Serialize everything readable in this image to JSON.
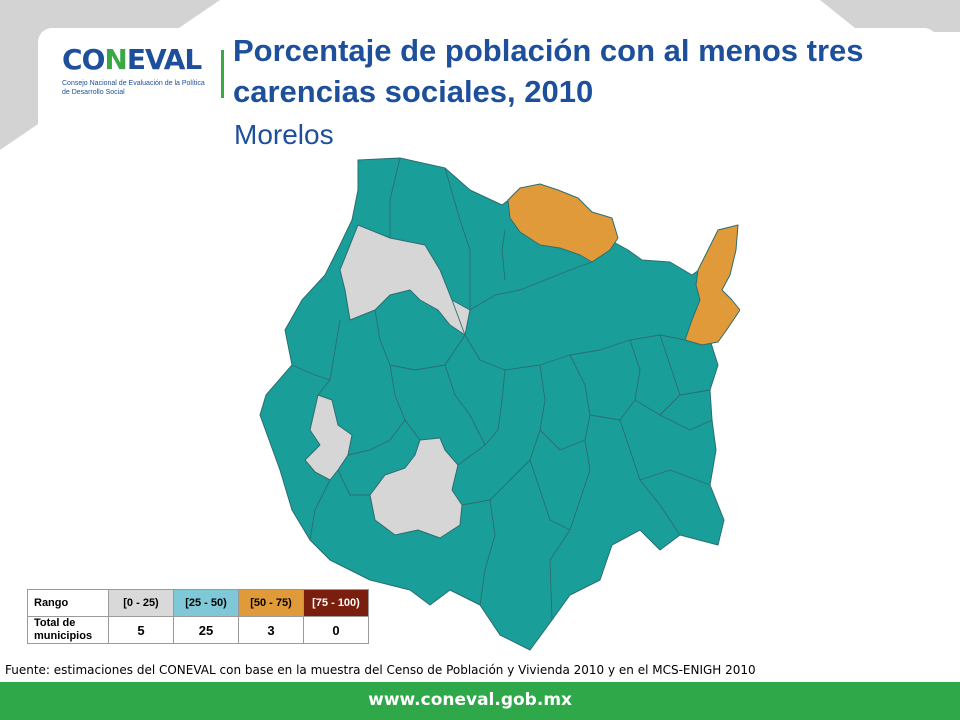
{
  "header": {
    "logo_text": "CONEVAL",
    "logo_subtitle": "Consejo Nacional de Evaluación de la Política de Desarrollo Social",
    "title": "Porcentaje de población con al menos tres carencias sociales, 2010",
    "subtitle": "Morelos"
  },
  "legend": {
    "row1_label": "Rango",
    "row2_label": "Total de municipios",
    "ranges": [
      "[0 - 25)",
      "[25 - 50)",
      "[50 - 75)",
      "[75 - 100)"
    ],
    "counts": [
      "5",
      "25",
      "3",
      "0"
    ],
    "colors": [
      "#d9d9d9",
      "#7ec8d8",
      "#e09a3a",
      "#7a1f0e"
    ]
  },
  "map_colors": {
    "teal": "#1a9e9a",
    "gray": "#d6d6d6",
    "orange": "#e09a3a",
    "border": "#2a6f73"
  },
  "source": "Fuente: estimaciones del CONEVAL con base en la muestra del Censo de Población y Vivienda 2010 y en el MCS-ENIGH 2010",
  "footer": {
    "url": "www.coneval.gob.mx"
  }
}
